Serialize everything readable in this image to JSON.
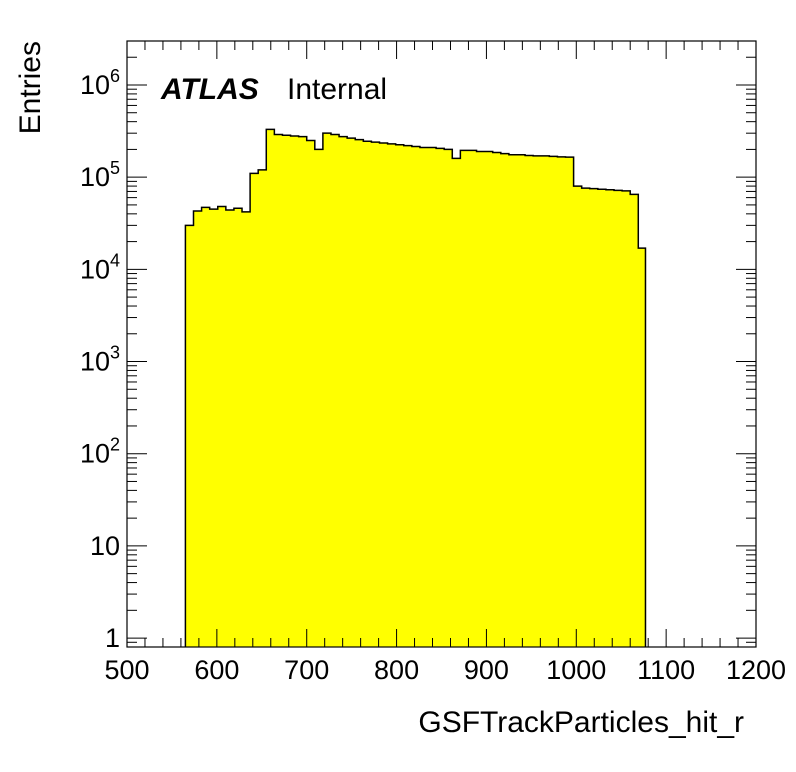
{
  "chart_data": {
    "type": "bar",
    "histogram": true,
    "log_y": true,
    "xlabel": "GSFTrackParticles_hit_r",
    "ylabel": "Entries",
    "annotation": {
      "experiment": "ATLAS",
      "status": "Internal"
    },
    "xlim": [
      500,
      1200
    ],
    "ylim": [
      0.8,
      3000000
    ],
    "x_ticks": [
      500,
      600,
      700,
      800,
      900,
      1000,
      1100,
      1200
    ],
    "x_tick_labels": [
      "500",
      "600",
      "700",
      "800",
      "900",
      "1000",
      "1100",
      "1200"
    ],
    "y_ticks": [
      {
        "value": 1,
        "base": "1",
        "exp": ""
      },
      {
        "value": 10,
        "base": "10",
        "exp": ""
      },
      {
        "value": 100,
        "base": "10",
        "exp": "2"
      },
      {
        "value": 1000,
        "base": "10",
        "exp": "3"
      },
      {
        "value": 10000,
        "base": "10",
        "exp": "4"
      },
      {
        "value": 100000,
        "base": "10",
        "exp": "5"
      },
      {
        "value": 1000000,
        "base": "10",
        "exp": "6"
      }
    ],
    "fill_color": "#ffff00",
    "line_color": "#000000",
    "bin_edges": [
      565,
      574,
      583,
      592,
      601,
      610,
      619,
      628,
      637,
      646,
      655,
      664,
      673,
      682,
      691,
      700,
      709,
      718,
      727,
      736,
      745,
      754,
      763,
      772,
      781,
      790,
      799,
      808,
      817,
      826,
      835,
      844,
      853,
      862,
      871,
      880,
      889,
      898,
      907,
      916,
      925,
      934,
      943,
      952,
      961,
      970,
      979,
      988,
      997,
      1006,
      1015,
      1024,
      1033,
      1042,
      1051,
      1060,
      1069,
      1077
    ],
    "values": [
      30000,
      43000,
      47000,
      45000,
      48000,
      44000,
      46000,
      42000,
      110000,
      120000,
      330000,
      290000,
      285000,
      280000,
      275000,
      250000,
      200000,
      300000,
      290000,
      275000,
      265000,
      255000,
      245000,
      240000,
      235000,
      230000,
      225000,
      220000,
      215000,
      210000,
      210000,
      205000,
      200000,
      160000,
      195000,
      195000,
      190000,
      190000,
      185000,
      180000,
      175000,
      175000,
      172000,
      170000,
      170000,
      168000,
      166000,
      165000,
      80000,
      76000,
      75000,
      74000,
      73000,
      72000,
      71000,
      65000,
      17000
    ]
  }
}
